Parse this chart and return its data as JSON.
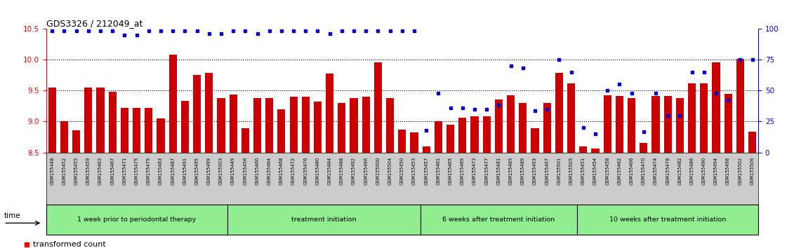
{
  "title": "GDS3326 / 212049_at",
  "gsm_labels": [
    "GSM155448",
    "GSM155452",
    "GSM155455",
    "GSM155459",
    "GSM155463",
    "GSM155467",
    "GSM155471",
    "GSM155475",
    "GSM155479",
    "GSM155483",
    "GSM155487",
    "GSM155491",
    "GSM155495",
    "GSM155499",
    "GSM155503",
    "GSM155449",
    "GSM155456",
    "GSM155460",
    "GSM155464",
    "GSM155468",
    "GSM155472",
    "GSM155476",
    "GSM155480",
    "GSM155484",
    "GSM155488",
    "GSM155492",
    "GSM155496",
    "GSM155500",
    "GSM155504",
    "GSM155450",
    "GSM155453",
    "GSM155457",
    "GSM155461",
    "GSM155465",
    "GSM155469",
    "GSM155473",
    "GSM155477",
    "GSM155481",
    "GSM155485",
    "GSM155489",
    "GSM155493",
    "GSM155497",
    "GSM155501",
    "GSM155505",
    "GSM155451",
    "GSM155454",
    "GSM155458",
    "GSM155462",
    "GSM155466",
    "GSM155470",
    "GSM155474",
    "GSM155478",
    "GSM155482",
    "GSM155486",
    "GSM155490",
    "GSM155494",
    "GSM155498",
    "GSM155502",
    "GSM155506"
  ],
  "bar_values": [
    9.55,
    9.01,
    8.86,
    9.55,
    9.55,
    9.48,
    9.22,
    9.22,
    9.22,
    9.05,
    10.08,
    9.33,
    9.75,
    9.78,
    9.38,
    9.44,
    8.89,
    9.38,
    9.38,
    9.2,
    9.4,
    9.4,
    9.32,
    9.77,
    9.3,
    9.38,
    9.4,
    9.95,
    9.38,
    8.87,
    8.82,
    8.6,
    9.01,
    8.95,
    9.06,
    9.08,
    9.08,
    9.35,
    9.42,
    9.3,
    8.89,
    9.3,
    9.78,
    9.62,
    8.6,
    8.57,
    9.42,
    9.41,
    9.38,
    8.66,
    9.41,
    9.41,
    9.38,
    9.62,
    9.62,
    9.95,
    9.45,
    10.01,
    8.84
  ],
  "percentile_values": [
    98,
    98,
    98,
    98,
    98,
    98,
    95,
    95,
    98,
    98,
    98,
    98,
    98,
    96,
    96,
    98,
    98,
    96,
    98,
    98,
    98,
    98,
    98,
    96,
    98,
    98,
    98,
    98,
    98,
    98,
    98,
    18,
    48,
    36,
    36,
    35,
    35,
    38,
    70,
    68,
    34,
    35,
    75,
    65,
    20,
    15,
    50,
    55,
    48,
    17,
    48,
    30,
    30,
    65,
    65,
    48,
    42,
    75,
    75
  ],
  "group_labels": [
    "1 week prior to periodontal therapy",
    "treatment initiation",
    "6 weeks after treatment initiation",
    "10 weeks after treatment initiation"
  ],
  "group_sizes": [
    15,
    16,
    13,
    15
  ],
  "ylim_left": [
    8.5,
    10.5
  ],
  "ylim_right": [
    0,
    100
  ],
  "yticks_left": [
    8.5,
    9.0,
    9.5,
    10.0,
    10.5
  ],
  "yticks_right": [
    0,
    25,
    50,
    75,
    100
  ],
  "bar_color": "#CC0000",
  "dot_color": "#0000CC",
  "bg_color": "#ffffff",
  "tick_area_color": "#CCCCCC",
  "group_color": "#90EE90"
}
